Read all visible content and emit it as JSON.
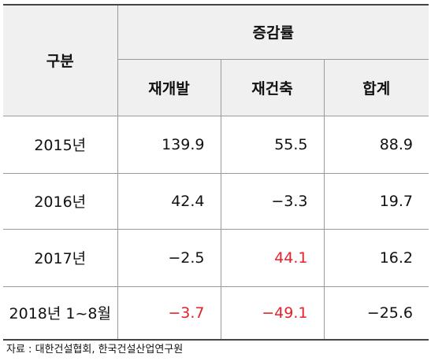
{
  "table": {
    "header": {
      "category": "구분",
      "group": "증감률",
      "columns": [
        "재개발",
        "재건축",
        "합계"
      ]
    },
    "rows": [
      {
        "label": "2015년",
        "values": [
          "139.9",
          "55.5",
          "88.9"
        ],
        "red": [
          false,
          false,
          false
        ]
      },
      {
        "label": "2016년",
        "values": [
          "42.4",
          "−3.3",
          "19.7"
        ],
        "red": [
          false,
          false,
          false
        ]
      },
      {
        "label": "2017년",
        "values": [
          "−2.5",
          "44.1",
          "16.2"
        ],
        "red": [
          false,
          true,
          false
        ]
      },
      {
        "label": "2018년 1~8월",
        "values": [
          "−3.7",
          "−49.1",
          "−25.6"
        ],
        "red": [
          true,
          true,
          false
        ]
      }
    ],
    "colors": {
      "header_bg": "#f0f0f0",
      "highlight": "#e8202a",
      "text": "#111111"
    }
  },
  "source": "자료 : 대한건설협회, 한국건설산업연구원"
}
